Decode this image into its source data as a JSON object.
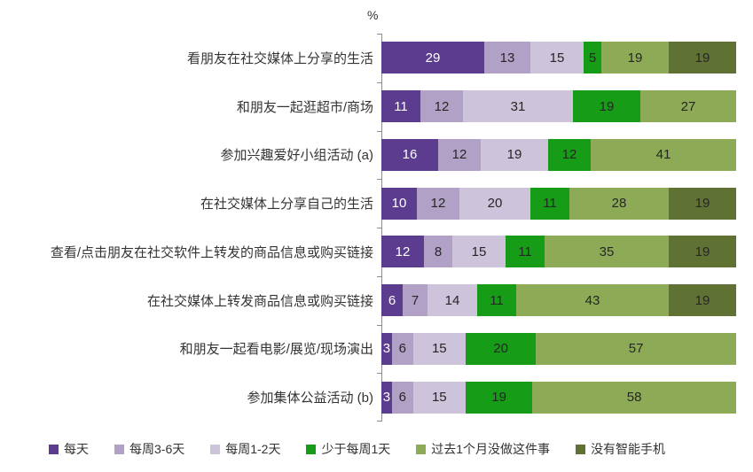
{
  "axis": {
    "unit_label": "%"
  },
  "chart_data": {
    "type": "bar",
    "orientation": "horizontal-stacked",
    "unit": "%",
    "xlim": [
      0,
      100
    ],
    "grid": false,
    "legend_position": "bottom",
    "axis_color": "#8c8c8c",
    "categories": [
      "看朋友在社交媒体上分享的生活",
      "和朋友一起逛超市/商场",
      "参加兴趣爱好小组活动 (a)",
      "在社交媒体上分享自己的生活",
      "查看/点击朋友在社交软件上转发的商品信息或购买链接",
      "在社交媒体上转发商品信息或购买链接",
      "和朋友一起看电影/展览/现场演出",
      "参加集体公益活动 (b)"
    ],
    "series": [
      {
        "name": "每天",
        "color": "#5b3c8e",
        "values": [
          29,
          11,
          16,
          10,
          12,
          6,
          3,
          3
        ]
      },
      {
        "name": "每周3-6天",
        "color": "#b2a1c7",
        "values": [
          13,
          12,
          12,
          12,
          8,
          7,
          6,
          6
        ]
      },
      {
        "name": "每周1-2天",
        "color": "#cdc3da",
        "values": [
          15,
          31,
          19,
          20,
          15,
          14,
          15,
          15
        ]
      },
      {
        "name": "少于每周1天",
        "color": "#169c16",
        "values": [
          5,
          19,
          12,
          11,
          11,
          11,
          20,
          19
        ]
      },
      {
        "name": "过去1个月没做这件事",
        "color": "#8dab56",
        "values": [
          19,
          27,
          41,
          28,
          35,
          43,
          57,
          58
        ]
      },
      {
        "name": "没有智能手机",
        "color": "#5f7233",
        "values": [
          19,
          0,
          0,
          19,
          19,
          19,
          0,
          0
        ]
      }
    ]
  }
}
